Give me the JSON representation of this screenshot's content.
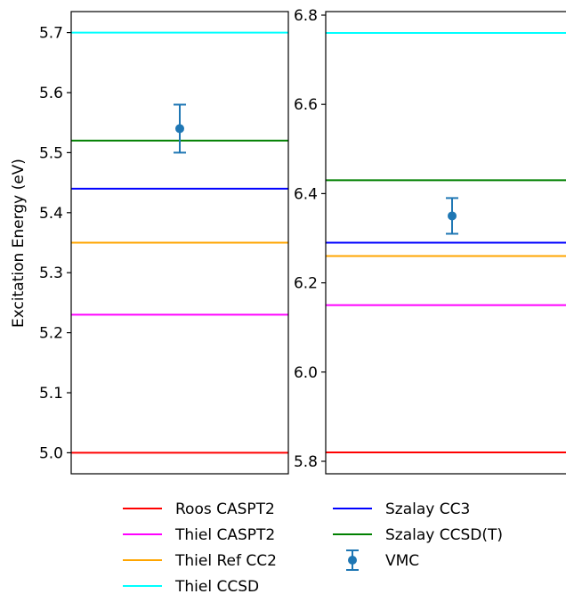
{
  "figure": {
    "ylabel": "Excitation Energy (eV)"
  },
  "chart_data": [
    {
      "type": "line",
      "panel": "left",
      "ylim": [
        4.965,
        5.735
      ],
      "yticks": [
        5.0,
        5.1,
        5.2,
        5.3,
        5.4,
        5.5,
        5.6,
        5.7
      ],
      "ytick_labels": [
        "5.0",
        "5.1",
        "5.2",
        "5.3",
        "5.4",
        "5.5",
        "5.6",
        "5.7"
      ],
      "grid": false,
      "hlines": [
        {
          "name": "Roos CASPT2",
          "value": 5.0,
          "color": "#ff0000"
        },
        {
          "name": "Thiel CASPT2",
          "value": 5.23,
          "color": "#ff00ff"
        },
        {
          "name": "Thiel Ref CC2",
          "value": 5.35,
          "color": "#ffa500"
        },
        {
          "name": "Thiel CCSD",
          "value": 5.7,
          "color": "#00ffff"
        },
        {
          "name": "Szalay CC3",
          "value": 5.44,
          "color": "#0000ff"
        },
        {
          "name": "Szalay CCSD(T)",
          "value": 5.52,
          "color": "#008000"
        }
      ],
      "point": {
        "name": "VMC",
        "value": 5.54,
        "error": 0.04,
        "color": "#1f77b4"
      }
    },
    {
      "type": "line",
      "panel": "right",
      "ylim": [
        5.772,
        6.808
      ],
      "yticks": [
        5.8,
        6.0,
        6.2,
        6.4,
        6.6,
        6.8
      ],
      "ytick_labels": [
        "5.8",
        "6.0",
        "6.2",
        "6.4",
        "6.6",
        "6.8"
      ],
      "grid": false,
      "hlines": [
        {
          "name": "Roos CASPT2",
          "value": 5.82,
          "color": "#ff0000"
        },
        {
          "name": "Thiel CASPT2",
          "value": 6.15,
          "color": "#ff00ff"
        },
        {
          "name": "Thiel Ref CC2",
          "value": 6.26,
          "color": "#ffa500"
        },
        {
          "name": "Thiel CCSD",
          "value": 6.76,
          "color": "#00ffff"
        },
        {
          "name": "Szalay CC3",
          "value": 6.29,
          "color": "#0000ff"
        },
        {
          "name": "Szalay CCSD(T)",
          "value": 6.43,
          "color": "#008000"
        }
      ],
      "point": {
        "name": "VMC",
        "value": 6.35,
        "error": 0.04,
        "color": "#1f77b4"
      }
    }
  ],
  "legend": {
    "placement": "bottom",
    "entries": [
      {
        "label": "Roos CASPT2",
        "color": "#ff0000",
        "kind": "line"
      },
      {
        "label": "Thiel CASPT2",
        "color": "#ff00ff",
        "kind": "line"
      },
      {
        "label": "Thiel Ref CC2",
        "color": "#ffa500",
        "kind": "line"
      },
      {
        "label": "Thiel CCSD",
        "color": "#00ffff",
        "kind": "line"
      },
      {
        "label": "Szalay CC3",
        "color": "#0000ff",
        "kind": "line"
      },
      {
        "label": "Szalay CCSD(T)",
        "color": "#008000",
        "kind": "line"
      },
      {
        "label": "VMC",
        "color": "#1f77b4",
        "kind": "errorbar"
      }
    ]
  }
}
